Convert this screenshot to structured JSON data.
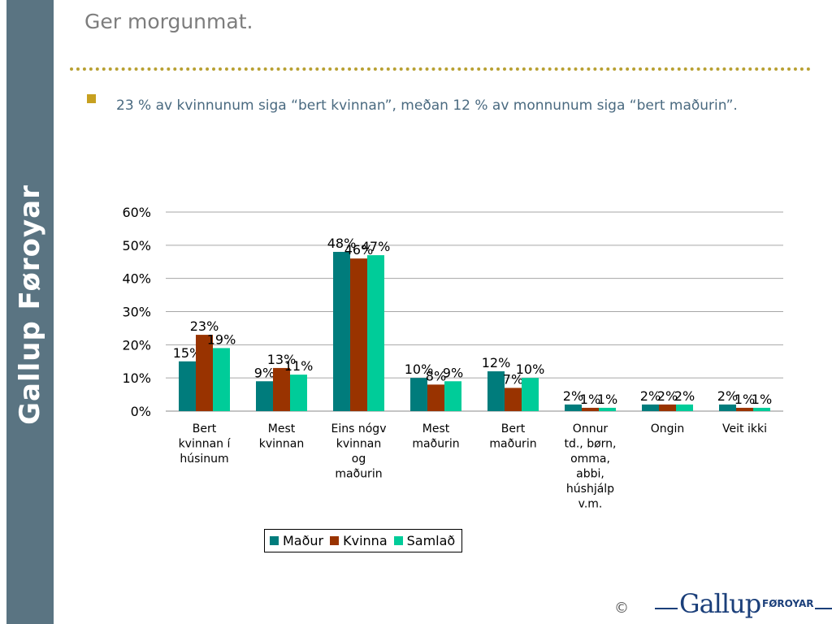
{
  "sidebar": {
    "label": "Gallup Føroyar"
  },
  "slide": {
    "title": "Ger morgunmat.",
    "bullet": "23 % av kvinnunum siga “bert kvinnan”, meðan 12 % av monnunum siga “bert maðurin”."
  },
  "footer": {
    "copyright": "©",
    "logo_main": "Gallup",
    "logo_sub": "FØROYAR"
  },
  "colors": {
    "series": [
      "#007c7c",
      "#993300",
      "#00cc99"
    ],
    "sidebar": "#5a7482",
    "accent": "#c7a020"
  },
  "chart_data": {
    "type": "bar",
    "categories": [
      [
        "Bert",
        "kvinnan í",
        "húsinum"
      ],
      [
        "Mest",
        "kvinnan"
      ],
      [
        "Eins nógv",
        "kvinnan",
        "og",
        "maðurin"
      ],
      [
        "Mest",
        "maðurin"
      ],
      [
        "Bert",
        "maðurin"
      ],
      [
        "Onnur",
        "td., børn,",
        "omma,",
        "abbi,",
        "húshjálp",
        "v.m."
      ],
      [
        "Ongin"
      ],
      [
        "Veit ikki"
      ]
    ],
    "series": [
      {
        "name": "Maður",
        "values": [
          15,
          9,
          48,
          10,
          12,
          2,
          2,
          2
        ]
      },
      {
        "name": "Kvinna",
        "values": [
          23,
          13,
          46,
          8,
          7,
          1,
          2,
          1
        ]
      },
      {
        "name": "Samlað",
        "values": [
          19,
          11,
          47,
          9,
          10,
          1,
          2,
          1
        ]
      }
    ],
    "yticks": [
      "0%",
      "10%",
      "20%",
      "30%",
      "40%",
      "50%",
      "60%"
    ],
    "ylim": [
      0,
      60
    ],
    "value_suffix": "%",
    "grid": true,
    "legend_position": "bottom"
  }
}
